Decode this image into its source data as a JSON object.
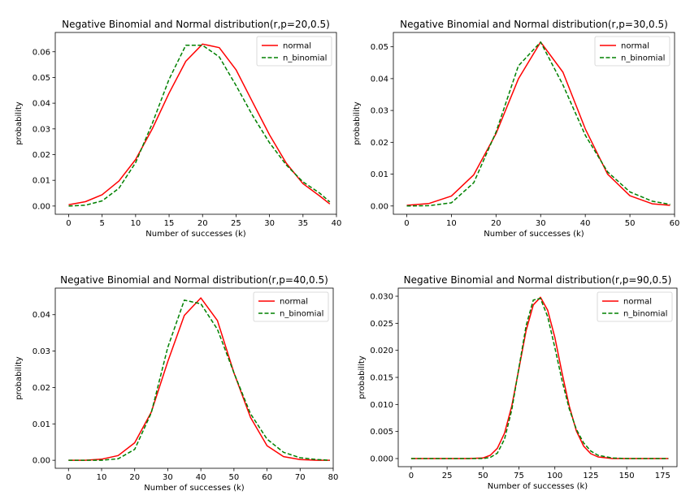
{
  "chart_data": [
    {
      "type": "line",
      "title": "Negative Binomial and Normal distribution(r,p=20,0.5)",
      "xlabel": "Number of successes (k)",
      "ylabel": "probability",
      "xlim": [
        -2,
        40
      ],
      "ylim": [
        -0.0032,
        0.0675
      ],
      "xticks": [
        0,
        5,
        10,
        15,
        20,
        25,
        30,
        35,
        40
      ],
      "yticks": [
        "0.00",
        "0.01",
        "0.02",
        "0.03",
        "0.04",
        "0.05",
        "0.06"
      ],
      "ytick_values": [
        0,
        0.01,
        0.02,
        0.03,
        0.04,
        0.05,
        0.06
      ],
      "legend": "top-right",
      "x": [
        0,
        2.5,
        5,
        7.5,
        10,
        12.5,
        15,
        17.5,
        20,
        22.5,
        25,
        27.5,
        30,
        32.5,
        35,
        37.5,
        39
      ],
      "series": [
        {
          "name": "normal",
          "color": "#ff0000",
          "dash": "solid",
          "values": [
            0.0005,
            0.0017,
            0.0044,
            0.0097,
            0.0181,
            0.0301,
            0.0439,
            0.0563,
            0.063,
            0.0616,
            0.053,
            0.0403,
            0.0277,
            0.0167,
            0.0087,
            0.0039,
            0.0008
          ]
        },
        {
          "name": "n_binomial",
          "color": "#008000",
          "dash": "dashed",
          "values": [
            0.0,
            0.0003,
            0.002,
            0.0069,
            0.0169,
            0.0322,
            0.0493,
            0.0625,
            0.0625,
            0.058,
            0.0469,
            0.0351,
            0.0246,
            0.016,
            0.0094,
            0.005,
            0.0016
          ]
        }
      ]
    },
    {
      "type": "line",
      "title": "Negative Binomial and Normal distribution(r,p=30,0.5)",
      "xlabel": "Number of successes (k)",
      "ylabel": "probability",
      "xlim": [
        -3,
        60
      ],
      "ylim": [
        -0.0026,
        0.0545
      ],
      "xticks": [
        0,
        10,
        20,
        30,
        40,
        50,
        60
      ],
      "yticks": [
        "0.00",
        "0.01",
        "0.02",
        "0.03",
        "0.04",
        "0.05"
      ],
      "ytick_values": [
        0,
        0.01,
        0.02,
        0.03,
        0.04,
        0.05
      ],
      "legend": "top-right",
      "x": [
        0,
        5,
        10,
        15,
        20,
        25,
        30,
        35,
        40,
        45,
        50,
        55,
        59
      ],
      "series": [
        {
          "name": "normal",
          "color": "#ff0000",
          "dash": "solid",
          "values": [
            0.0002,
            0.0008,
            0.0031,
            0.0098,
            0.0227,
            0.0399,
            0.0515,
            0.042,
            0.0242,
            0.01,
            0.0032,
            0.0007,
            0.0002
          ]
        },
        {
          "name": "n_binomial",
          "color": "#008000",
          "dash": "dashed",
          "values": [
            0.0,
            0.0001,
            0.001,
            0.0073,
            0.0232,
            0.044,
            0.0515,
            0.038,
            0.0222,
            0.0107,
            0.0044,
            0.0015,
            0.0005
          ]
        }
      ]
    },
    {
      "type": "line",
      "title": "Negative Binomial and Normal distribution(r,p=40,0.5)",
      "xlabel": "Number of successes (k)",
      "ylabel": "probability",
      "xlim": [
        -4,
        80
      ],
      "ylim": [
        -0.0022,
        0.0473
      ],
      "xticks": [
        0,
        10,
        20,
        30,
        40,
        50,
        60,
        70,
        80
      ],
      "yticks": [
        "0.00",
        "0.01",
        "0.02",
        "0.03",
        "0.04"
      ],
      "ytick_values": [
        0,
        0.01,
        0.02,
        0.03,
        0.04
      ],
      "legend": "top-right",
      "x": [
        0,
        5,
        10,
        15,
        20,
        25,
        30,
        35,
        40,
        45,
        50,
        55,
        60,
        65,
        70,
        75,
        79
      ],
      "series": [
        {
          "name": "normal",
          "color": "#ff0000",
          "dash": "solid",
          "values": [
            0.0,
            0.0,
            0.0003,
            0.0013,
            0.0048,
            0.0132,
            0.0271,
            0.0398,
            0.0446,
            0.0384,
            0.024,
            0.0118,
            0.004,
            0.001,
            0.0002,
            0.0,
            0.0
          ]
        },
        {
          "name": "n_binomial",
          "color": "#008000",
          "dash": "dashed",
          "values": [
            0.0,
            0.0,
            0.0,
            0.0004,
            0.003,
            0.013,
            0.031,
            0.044,
            0.043,
            0.036,
            0.024,
            0.0128,
            0.0058,
            0.0022,
            0.0007,
            0.0002,
            0.0
          ]
        }
      ]
    },
    {
      "type": "line",
      "title": "Negative Binomial and Normal distribution(r,p=90,0.5)",
      "xlabel": "Number of successes (k)",
      "ylabel": "probability",
      "xlim": [
        -9,
        185
      ],
      "ylim": [
        -0.0015,
        0.0315
      ],
      "xticks": [
        0,
        25,
        50,
        75,
        100,
        125,
        150,
        175
      ],
      "yticks": [
        "0.000",
        "0.005",
        "0.010",
        "0.015",
        "0.020",
        "0.025",
        "0.030"
      ],
      "ytick_values": [
        0,
        0.005,
        0.01,
        0.015,
        0.02,
        0.025,
        0.03
      ],
      "legend": "top-right",
      "x": [
        0,
        10,
        20,
        30,
        40,
        50,
        55,
        60,
        65,
        70,
        75,
        80,
        85,
        90,
        95,
        100,
        105,
        110,
        115,
        120,
        125,
        130,
        140,
        150,
        160,
        170,
        179
      ],
      "series": [
        {
          "name": "normal",
          "color": "#ff0000",
          "dash": "solid",
          "values": [
            0,
            0,
            0,
            0,
            0,
            0.0001,
            0.0006,
            0.0019,
            0.0047,
            0.0097,
            0.0166,
            0.0237,
            0.0284,
            0.0298,
            0.0274,
            0.0224,
            0.0158,
            0.0097,
            0.0051,
            0.0023,
            0.0009,
            0.0003,
            0,
            0,
            0,
            0,
            0
          ]
        },
        {
          "name": "n_binomial",
          "color": "#008000",
          "dash": "dashed",
          "values": [
            0,
            0,
            0,
            0,
            0,
            0.0,
            0.0002,
            0.001,
            0.0036,
            0.009,
            0.0168,
            0.0246,
            0.0293,
            0.0296,
            0.0262,
            0.0205,
            0.0144,
            0.0092,
            0.0054,
            0.0029,
            0.0014,
            0.0006,
            0.0001,
            0,
            0,
            0,
            0
          ]
        }
      ]
    }
  ]
}
